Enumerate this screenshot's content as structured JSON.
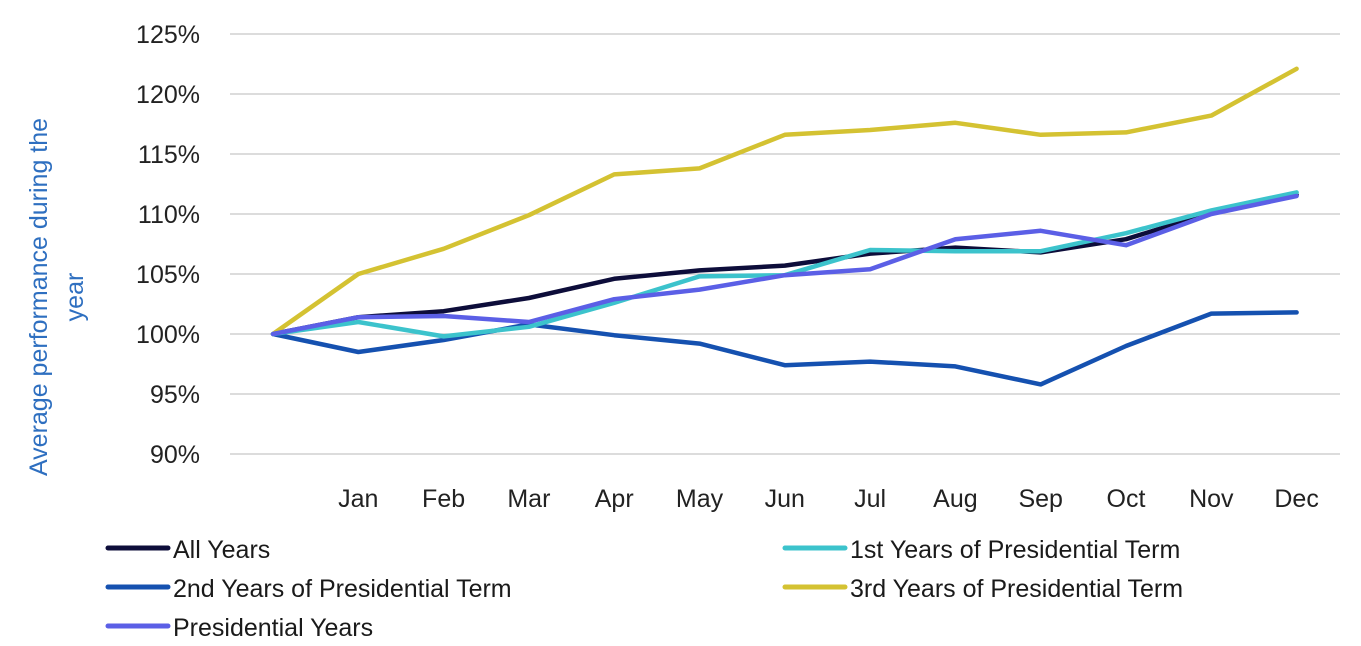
{
  "chart_data": {
    "type": "line",
    "title": "",
    "xlabel": "",
    "ylabel_lines": [
      "Average performance during the",
      "year"
    ],
    "categories": [
      "",
      "Jan",
      "Feb",
      "Mar",
      "Apr",
      "May",
      "Jun",
      "Jul",
      "Aug",
      "Sep",
      "Oct",
      "Nov",
      "Dec"
    ],
    "yticks": [
      90,
      95,
      100,
      105,
      110,
      115,
      120,
      125
    ],
    "ytick_labels": [
      "90%",
      "95%",
      "100%",
      "105%",
      "110%",
      "115%",
      "120%",
      "125%"
    ],
    "ylim": [
      90,
      125
    ],
    "grid": true,
    "legend_position": "bottom",
    "series": [
      {
        "name": "All Years",
        "color": "#0D0D3A",
        "values": [
          100,
          101.4,
          101.9,
          103.0,
          104.6,
          105.3,
          105.7,
          106.7,
          107.2,
          106.8,
          107.9,
          110.1,
          111.6
        ]
      },
      {
        "name": "1st Years of Presidential Term",
        "color": "#3CC3CC",
        "values": [
          100,
          101.0,
          99.8,
          100.6,
          102.6,
          104.8,
          104.9,
          107.0,
          106.9,
          106.9,
          108.4,
          110.3,
          111.8
        ]
      },
      {
        "name": "2nd Years of Presidential Term",
        "color": "#1551B0",
        "values": [
          100,
          98.5,
          99.5,
          100.8,
          99.9,
          99.2,
          97.4,
          97.7,
          97.3,
          95.8,
          99.0,
          101.7,
          101.8
        ]
      },
      {
        "name": "3rd Years of Presidential Term",
        "color": "#D4C232",
        "values": [
          100,
          105.0,
          107.1,
          109.9,
          113.3,
          113.8,
          116.6,
          117.0,
          117.6,
          116.6,
          116.8,
          118.2,
          122.1
        ]
      },
      {
        "name": "Presidential Years",
        "color": "#5B5FE6",
        "values": [
          100,
          101.4,
          101.5,
          101.0,
          102.9,
          103.7,
          104.9,
          105.4,
          107.9,
          108.6,
          107.4,
          110.0,
          111.5
        ]
      }
    ]
  }
}
